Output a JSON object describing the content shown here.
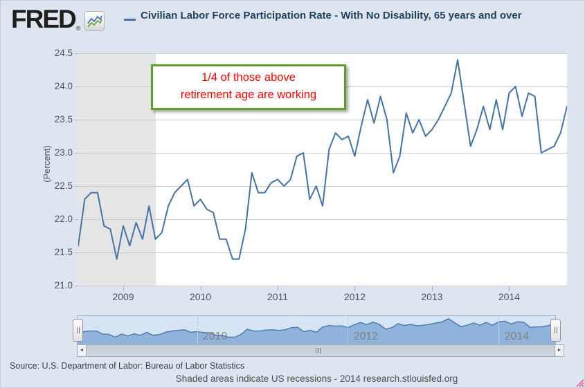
{
  "header": {
    "logo_text": "FRED",
    "registered_mark": "®",
    "series_title": "Civilian Labor Force Participation Rate - With No Disability, 65 years and over"
  },
  "chart_data": {
    "type": "line",
    "title": "Civilian Labor Force Participation Rate - With No Disability, 65 years and over",
    "ylabel": "(Percent)",
    "ylim": [
      21.0,
      24.5
    ],
    "yticks": [
      "24.5",
      "24.0",
      "23.5",
      "23.0",
      "22.5",
      "22.0",
      "21.5",
      "21.0"
    ],
    "grid": true,
    "frequency": "monthly",
    "x_start_month": "2008-06",
    "x_end_month": "2014-10",
    "xticks": [
      {
        "label": "2009",
        "month_index": 7
      },
      {
        "label": "2010",
        "month_index": 19
      },
      {
        "label": "2011",
        "month_index": 31
      },
      {
        "label": "2012",
        "month_index": 43
      },
      {
        "label": "2013",
        "month_index": 55
      },
      {
        "label": "2014",
        "month_index": 67
      }
    ],
    "series": [
      {
        "name": "Civilian Labor Force Participation Rate - With No Disability, 65 years and over",
        "color": "#4572a7",
        "values": [
          21.6,
          22.3,
          22.4,
          22.4,
          21.9,
          21.85,
          21.4,
          21.9,
          21.6,
          21.95,
          21.7,
          22.2,
          21.7,
          21.8,
          22.2,
          22.4,
          22.5,
          22.6,
          22.2,
          22.3,
          22.15,
          22.1,
          21.7,
          21.7,
          21.4,
          21.4,
          21.85,
          22.7,
          22.4,
          22.4,
          22.55,
          22.6,
          22.5,
          22.6,
          22.95,
          23.0,
          22.3,
          22.5,
          22.2,
          23.05,
          23.3,
          23.2,
          23.25,
          22.95,
          23.4,
          23.8,
          23.45,
          23.85,
          23.5,
          22.7,
          22.95,
          23.6,
          23.3,
          23.5,
          23.25,
          23.35,
          23.5,
          23.7,
          23.9,
          24.4,
          23.75,
          23.1,
          23.35,
          23.7,
          23.35,
          23.8,
          23.35,
          23.9,
          24.0,
          23.55,
          23.9,
          23.85,
          23.0,
          23.05,
          23.1,
          23.3,
          23.7
        ]
      }
    ],
    "recession_band": {
      "start_month_index": 0,
      "end_month_index": 12,
      "color": "#e5e5e5"
    },
    "annotation": {
      "lines": [
        "1/4 of those above",
        "retirement age are working"
      ],
      "text_color": "#ff0000",
      "border_color": "#5f9e28"
    }
  },
  "slider": {
    "year_labels": [
      {
        "label": "2010",
        "month_index": 19
      },
      {
        "label": "2012",
        "month_index": 43
      },
      {
        "label": "2014",
        "month_index": 67
      }
    ],
    "left_arrow": "◄",
    "right_arrow": "►"
  },
  "footer": {
    "source": "Source: U.S. Department of Labor: Bureau of Labor Statistics",
    "note": "Shaded areas indicate US recessions - 2014 research.stlouisfed.org"
  }
}
